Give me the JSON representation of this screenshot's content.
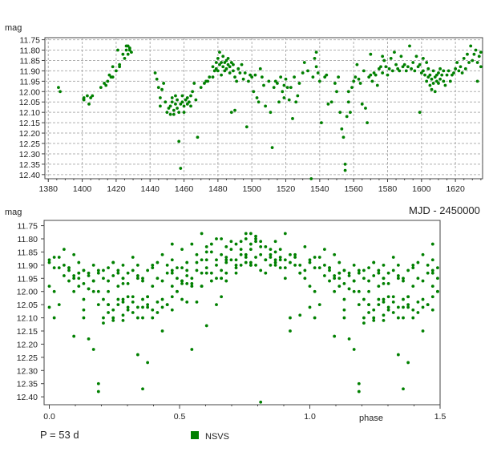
{
  "texts": {
    "top_ylabel": "mag",
    "bottom_ylabel": "mag",
    "top_xlabel": "MJD - 2450000",
    "bottom_xlabel": "phase",
    "period": "P = 53 d",
    "legend": "NSVS"
  },
  "colors": {
    "points": "#008000",
    "grid": "#b0b0b0",
    "frame": "#444444"
  },
  "chart_data": [
    {
      "type": "scatter",
      "name": "time-series",
      "xlabel": "MJD - 2450000",
      "ylabel": "mag",
      "xlim": [
        1378,
        1636
      ],
      "ylim": [
        12.42,
        11.74
      ],
      "y_inverted": true,
      "grid": true,
      "xticks": [
        1380,
        1400,
        1420,
        1440,
        1460,
        1480,
        1500,
        1520,
        1540,
        1560,
        1580,
        1600,
        1620
      ],
      "yticks": [
        11.75,
        11.8,
        11.85,
        11.9,
        11.95,
        12.0,
        12.05,
        12.1,
        12.15,
        12.2,
        12.25,
        12.3,
        12.35,
        12.4
      ],
      "series": [
        {
          "name": "NSVS",
          "points": [
            [
              1386,
              11.98
            ],
            [
              1387,
              12.0
            ],
            [
              1401,
              12.03
            ],
            [
              1401,
              12.04
            ],
            [
              1403,
              12.02
            ],
            [
              1404,
              12.06
            ],
            [
              1405,
              12.03
            ],
            [
              1406,
              12.02
            ],
            [
              1411,
              11.98
            ],
            [
              1413,
              11.96
            ],
            [
              1414,
              11.97
            ],
            [
              1415,
              11.95
            ],
            [
              1416,
              11.92
            ],
            [
              1417,
              11.93
            ],
            [
              1418,
              11.88
            ],
            [
              1418,
              11.93
            ],
            [
              1420,
              11.9
            ],
            [
              1421,
              11.8
            ],
            [
              1422,
              11.87
            ],
            [
              1422,
              11.88
            ],
            [
              1424,
              11.82
            ],
            [
              1425,
              11.84
            ],
            [
              1426,
              11.78
            ],
            [
              1426,
              11.8
            ],
            [
              1427,
              11.78
            ],
            [
              1427,
              11.82
            ],
            [
              1428,
              11.8
            ],
            [
              1428,
              11.79
            ],
            [
              1429,
              11.81
            ],
            [
              1443,
              11.91
            ],
            [
              1444,
              11.94
            ],
            [
              1445,
              11.98
            ],
            [
              1446,
              12.03
            ],
            [
              1446,
              12.07
            ],
            [
              1447,
              11.99
            ],
            [
              1448,
              11.96
            ],
            [
              1449,
              12.05
            ],
            [
              1450,
              12.1
            ],
            [
              1451,
              12.08
            ],
            [
              1452,
              12.07
            ],
            [
              1452,
              12.11
            ],
            [
              1453,
              12.05
            ],
            [
              1453,
              12.03
            ],
            [
              1454,
              12.09
            ],
            [
              1454,
              12.11
            ],
            [
              1455,
              12.06
            ],
            [
              1455,
              12.02
            ],
            [
              1456,
              12.04
            ],
            [
              1456,
              12.08
            ],
            [
              1457,
              12.1
            ],
            [
              1457,
              12.24
            ],
            [
              1458,
              12.37
            ],
            [
              1458,
              12.06
            ],
            [
              1459,
              12.02
            ],
            [
              1459,
              12.05
            ],
            [
              1460,
              12.07
            ],
            [
              1460,
              12.1
            ],
            [
              1461,
              12.04
            ],
            [
              1462,
              12.06
            ],
            [
              1462,
              12.03
            ],
            [
              1463,
              12.05
            ],
            [
              1464,
              12.02
            ],
            [
              1464,
              12.07
            ],
            [
              1465,
              12.0
            ],
            [
              1466,
              11.96
            ],
            [
              1467,
              12.04
            ],
            [
              1468,
              12.22
            ],
            [
              1470,
              11.98
            ],
            [
              1472,
              11.96
            ],
            [
              1473,
              11.95
            ],
            [
              1474,
              11.95
            ],
            [
              1475,
              11.93
            ],
            [
              1477,
              11.88
            ],
            [
              1477,
              11.93
            ],
            [
              1478,
              11.9
            ],
            [
              1479,
              11.86
            ],
            [
              1479,
              11.89
            ],
            [
              1480,
              11.84
            ],
            [
              1480,
              11.9
            ],
            [
              1481,
              11.87
            ],
            [
              1481,
              11.81
            ],
            [
              1482,
              11.86
            ],
            [
              1482,
              11.92
            ],
            [
              1483,
              11.88
            ],
            [
              1483,
              11.83
            ],
            [
              1484,
              11.86
            ],
            [
              1484,
              11.9
            ],
            [
              1485,
              11.85
            ],
            [
              1485,
              11.89
            ],
            [
              1486,
              11.87
            ],
            [
              1486,
              11.84
            ],
            [
              1487,
              11.88
            ],
            [
              1487,
              11.91
            ],
            [
              1488,
              11.86
            ],
            [
              1488,
              12.1
            ],
            [
              1489,
              11.9
            ],
            [
              1489,
              11.87
            ],
            [
              1490,
              11.93
            ],
            [
              1490,
              12.09
            ],
            [
              1491,
              11.95
            ],
            [
              1492,
              11.89
            ],
            [
              1493,
              11.91
            ],
            [
              1494,
              11.87
            ],
            [
              1495,
              11.94
            ],
            [
              1496,
              11.91
            ],
            [
              1497,
              12.17
            ],
            [
              1498,
              11.95
            ],
            [
              1499,
              11.92
            ],
            [
              1500,
              11.93
            ],
            [
              1501,
              12.0
            ],
            [
              1502,
              11.92
            ],
            [
              1503,
              12.03
            ],
            [
              1504,
              12.05
            ],
            [
              1505,
              11.89
            ],
            [
              1506,
              11.93
            ],
            [
              1507,
              11.97
            ],
            [
              1508,
              12.07
            ],
            [
              1510,
              11.95
            ],
            [
              1511,
              12.1
            ],
            [
              1512,
              12.27
            ],
            [
              1513,
              11.98
            ],
            [
              1514,
              11.95
            ],
            [
              1515,
              11.96
            ],
            [
              1516,
              12.05
            ],
            [
              1517,
              11.93
            ],
            [
              1518,
              12.0
            ],
            [
              1519,
              11.97
            ],
            [
              1519,
              12.03
            ],
            [
              1520,
              11.94
            ],
            [
              1521,
              11.98
            ],
            [
              1522,
              12.04
            ],
            [
              1523,
              11.98
            ],
            [
              1524,
              12.13
            ],
            [
              1525,
              11.93
            ],
            [
              1526,
              12.05
            ],
            [
              1527,
              12.02
            ],
            [
              1528,
              11.96
            ],
            [
              1530,
              11.91
            ],
            [
              1531,
              11.86
            ],
            [
              1533,
              11.9
            ],
            [
              1535,
              12.42
            ],
            [
              1536,
              11.93
            ],
            [
              1537,
              11.84
            ],
            [
              1538,
              11.81
            ],
            [
              1538,
              11.88
            ],
            [
              1539,
              11.91
            ],
            [
              1540,
              11.95
            ],
            [
              1541,
              12.15
            ],
            [
              1543,
              11.93
            ],
            [
              1544,
              11.92
            ],
            [
              1545,
              12.06
            ],
            [
              1547,
              12.05
            ],
            [
              1549,
              11.96
            ],
            [
              1550,
              12.0
            ],
            [
              1551,
              11.93
            ],
            [
              1552,
              12.1
            ],
            [
              1553,
              12.18
            ],
            [
              1554,
              12.22
            ],
            [
              1555,
              12.38
            ],
            [
              1555,
              12.35
            ],
            [
              1556,
              12.12
            ],
            [
              1557,
              12.05
            ],
            [
              1557,
              12.0
            ],
            [
              1558,
              12.1
            ],
            [
              1559,
              11.98
            ],
            [
              1560,
              11.95
            ],
            [
              1561,
              11.93
            ],
            [
              1562,
              11.87
            ],
            [
              1563,
              11.94
            ],
            [
              1564,
              11.96
            ],
            [
              1565,
              12.06
            ],
            [
              1566,
              11.9
            ],
            [
              1567,
              12.08
            ],
            [
              1568,
              12.15
            ],
            [
              1569,
              11.93
            ],
            [
              1570,
              11.82
            ],
            [
              1570,
              11.92
            ],
            [
              1571,
              11.95
            ],
            [
              1572,
              11.91
            ],
            [
              1573,
              11.92
            ],
            [
              1574,
              11.97
            ],
            [
              1575,
              11.89
            ],
            [
              1576,
              11.88
            ],
            [
              1577,
              11.83
            ],
            [
              1577,
              11.91
            ],
            [
              1578,
              11.85
            ],
            [
              1579,
              11.88
            ],
            [
              1580,
              11.92
            ],
            [
              1581,
              11.89
            ],
            [
              1582,
              11.84
            ],
            [
              1583,
              11.9
            ],
            [
              1584,
              11.81
            ],
            [
              1585,
              11.87
            ],
            [
              1586,
              11.89
            ],
            [
              1587,
              11.9
            ],
            [
              1588,
              11.83
            ],
            [
              1589,
              11.88
            ],
            [
              1590,
              11.87
            ],
            [
              1591,
              11.9
            ],
            [
              1592,
              11.88
            ],
            [
              1593,
              11.78
            ],
            [
              1594,
              11.89
            ],
            [
              1595,
              11.86
            ],
            [
              1596,
              11.9
            ],
            [
              1597,
              11.83
            ],
            [
              1598,
              11.88
            ],
            [
              1599,
              11.87
            ],
            [
              1599,
              12.1
            ],
            [
              1600,
              11.91
            ],
            [
              1601,
              11.84
            ],
            [
              1601,
              11.9
            ],
            [
              1602,
              11.92
            ],
            [
              1603,
              11.86
            ],
            [
              1603,
              11.95
            ],
            [
              1604,
              11.93
            ],
            [
              1604,
              11.89
            ],
            [
              1605,
              11.97
            ],
            [
              1605,
              11.92
            ],
            [
              1606,
              11.94
            ],
            [
              1606,
              11.99
            ],
            [
              1607,
              11.96
            ],
            [
              1607,
              11.9
            ],
            [
              1608,
              12.0
            ],
            [
              1608,
              11.93
            ],
            [
              1609,
              11.92
            ],
            [
              1609,
              11.95
            ],
            [
              1610,
              11.96
            ],
            [
              1610,
              11.91
            ],
            [
              1611,
              11.94
            ],
            [
              1611,
              11.89
            ],
            [
              1612,
              11.92
            ],
            [
              1613,
              11.95
            ],
            [
              1613,
              11.9
            ],
            [
              1614,
              11.97
            ],
            [
              1615,
              11.92
            ],
            [
              1616,
              11.9
            ],
            [
              1617,
              11.95
            ],
            [
              1618,
              11.92
            ],
            [
              1619,
              11.91
            ],
            [
              1620,
              11.89
            ],
            [
              1621,
              11.86
            ],
            [
              1622,
              11.9
            ],
            [
              1623,
              11.88
            ],
            [
              1624,
              11.91
            ],
            [
              1625,
              11.84
            ],
            [
              1626,
              11.89
            ],
            [
              1627,
              11.82
            ],
            [
              1628,
              11.86
            ],
            [
              1629,
              11.78
            ],
            [
              1630,
              11.85
            ],
            [
              1631,
              11.82
            ],
            [
              1632,
              11.8
            ],
            [
              1633,
              11.86
            ],
            [
              1633,
              11.95
            ],
            [
              1634,
              11.83
            ],
            [
              1635,
              11.88
            ],
            [
              1635,
              11.81
            ]
          ]
        }
      ]
    },
    {
      "type": "scatter",
      "name": "phased",
      "xlabel": "phase",
      "ylabel": "mag",
      "period_days": 53,
      "xlim": [
        -0.02,
        1.5
      ],
      "ylim": [
        12.43,
        11.73
      ],
      "y_inverted": true,
      "grid": false,
      "xticks": [
        "0.0",
        "0.5",
        "1.0",
        "1.5"
      ],
      "yticks": [
        11.75,
        11.8,
        11.85,
        11.9,
        11.95,
        12.0,
        12.05,
        12.1,
        12.15,
        12.2,
        12.25,
        12.3,
        12.35,
        12.4
      ],
      "legend": "bottom-center",
      "series": [
        {
          "name": "NSVS",
          "folded_from": "time-series",
          "epoch": 1386,
          "phase_range": [
            0,
            1.5
          ]
        }
      ]
    }
  ]
}
